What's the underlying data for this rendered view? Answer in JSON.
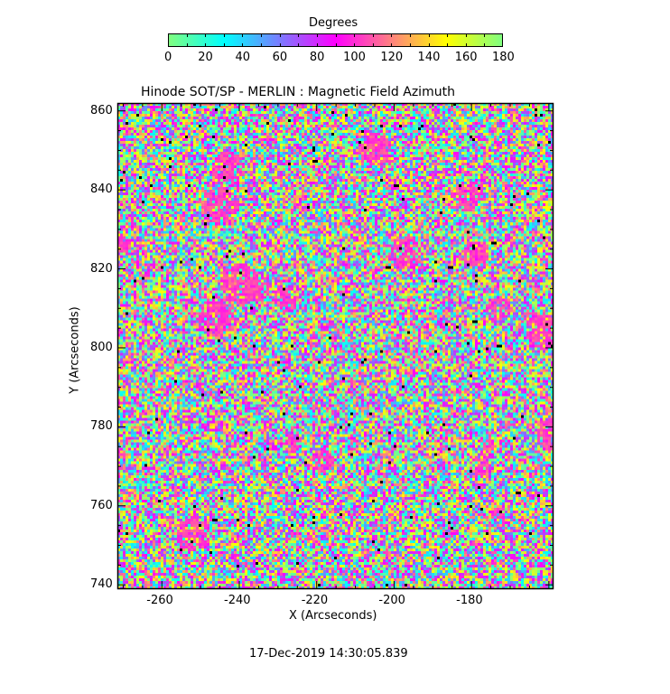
{
  "chart_data": {
    "type": "heatmap",
    "title": "Hinode SOT/SP - MERLIN : Magnetic Field Azimuth",
    "xlabel": "X (Arcseconds)",
    "ylabel": "Y (Arcseconds)",
    "xlim": [
      -271.5,
      -158.8
    ],
    "ylim": [
      738.9,
      862
    ],
    "xticks": [
      -260,
      -240,
      -220,
      -200,
      -180
    ],
    "yticks": [
      740,
      760,
      780,
      800,
      820,
      840,
      860
    ],
    "colorbar": {
      "label": "Degrees",
      "range": [
        0,
        180
      ],
      "ticks": [
        0,
        20,
        40,
        60,
        80,
        100,
        120,
        140,
        160,
        180
      ],
      "colormap_stops": [
        {
          "value": 0,
          "color": "#80ff80"
        },
        {
          "value": 30,
          "color": "#00ffff"
        },
        {
          "value": 60,
          "color": "#7a7aff"
        },
        {
          "value": 90,
          "color": "#ff00ff"
        },
        {
          "value": 120,
          "color": "#ff8080"
        },
        {
          "value": 150,
          "color": "#ffff00"
        },
        {
          "value": 180,
          "color": "#80ff80"
        }
      ]
    },
    "timestamp": "17-Dec-2019 14:30:05.839"
  }
}
